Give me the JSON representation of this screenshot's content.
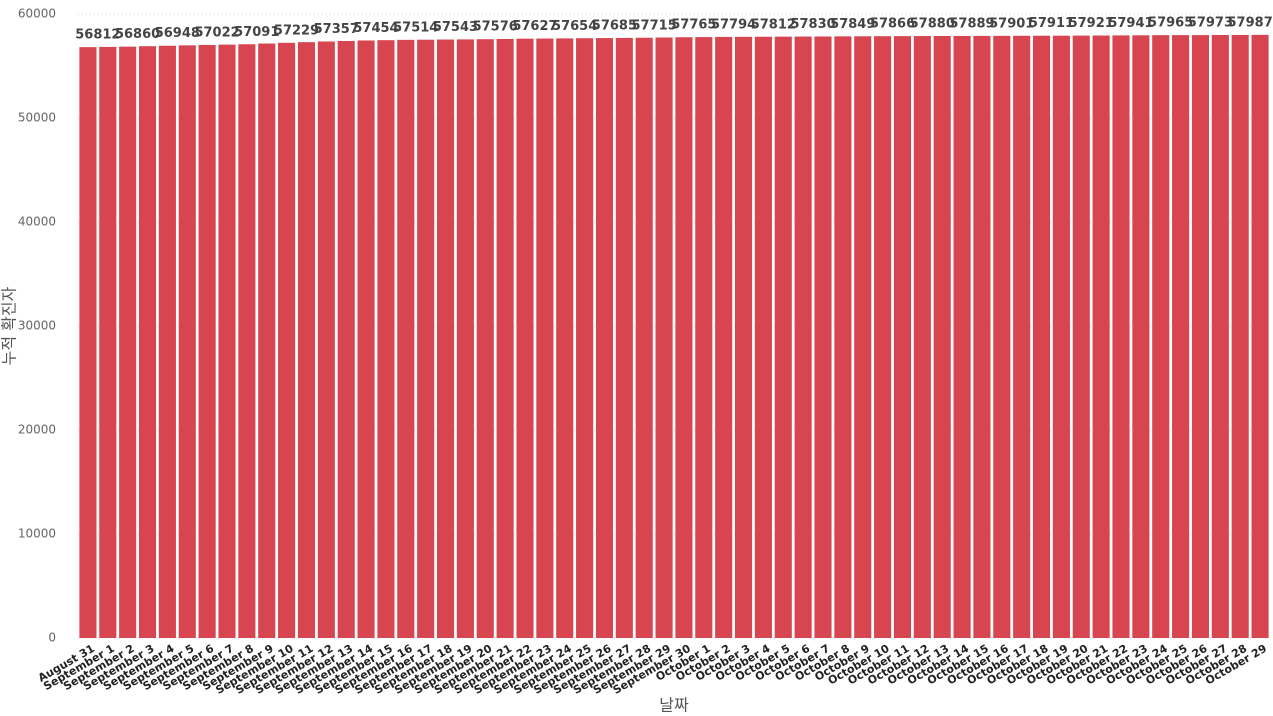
{
  "chart_data": {
    "type": "bar",
    "x_label": "날짜",
    "y_label": "누적 확진자",
    "categories": [
      "August 31",
      "September 1",
      "September 2",
      "September 3",
      "September 4",
      "September 5",
      "September 6",
      "September 7",
      "September 8",
      "September 9",
      "September 10",
      "September 11",
      "September 12",
      "September 13",
      "September 14",
      "September 15",
      "September 16",
      "September 17",
      "September 18",
      "September 19",
      "September 20",
      "September 21",
      "September 22",
      "September 23",
      "September 24",
      "September 25",
      "September 26",
      "September 27",
      "September 28",
      "September 29",
      "September 30",
      "October 1",
      "October 2",
      "October 3",
      "October 4",
      "October 5",
      "October 6",
      "October 7",
      "October 8",
      "October 9",
      "October 10",
      "October 11",
      "October 12",
      "October 13",
      "October 14",
      "October 15",
      "October 16",
      "October 17",
      "October 18",
      "October 19",
      "October 20",
      "October 21",
      "October 22",
      "October 23",
      "October 24",
      "October 25",
      "October 26",
      "October 27",
      "October 28",
      "October 29"
    ],
    "values": [
      56812,
      56836,
      56860,
      56904,
      56948,
      56985,
      57022,
      57056,
      57091,
      57160,
      57229,
      57293,
      57357,
      57405,
      57454,
      57484,
      57514,
      57528,
      57543,
      57559,
      57576,
      57601,
      57627,
      57640,
      57654,
      57669,
      57685,
      57700,
      57715,
      57740,
      57765,
      57779,
      57794,
      57803,
      57812,
      57821,
      57830,
      57839,
      57849,
      57857,
      57866,
      57873,
      57880,
      57884,
      57889,
      57895,
      57901,
      57906,
      57911,
      57916,
      57921,
      57931,
      57941,
      57953,
      57965,
      57969,
      57973,
      57980,
      57987,
      57994
    ],
    "value_labels": [
      "56812",
      null,
      "56860",
      null,
      "56948",
      null,
      "57022",
      null,
      "57091",
      null,
      "57229",
      null,
      "57357",
      null,
      "57454",
      null,
      "57514",
      null,
      "57543",
      null,
      "57576",
      null,
      "57627",
      null,
      "57654",
      null,
      "57685",
      null,
      "57715",
      null,
      "57765",
      null,
      "57794",
      null,
      "57812",
      null,
      "57830",
      null,
      "57849",
      null,
      "57866",
      null,
      "57880",
      null,
      "57889",
      null,
      "57901",
      null,
      "57911",
      null,
      "57921",
      null,
      "57941",
      null,
      "57965",
      null,
      "57973",
      null,
      "57987",
      null
    ],
    "color": "#d64550",
    "ylim": [
      0,
      60000
    ],
    "yticks": [
      0,
      10000,
      20000,
      30000,
      40000,
      50000,
      60000
    ],
    "grid": true
  }
}
